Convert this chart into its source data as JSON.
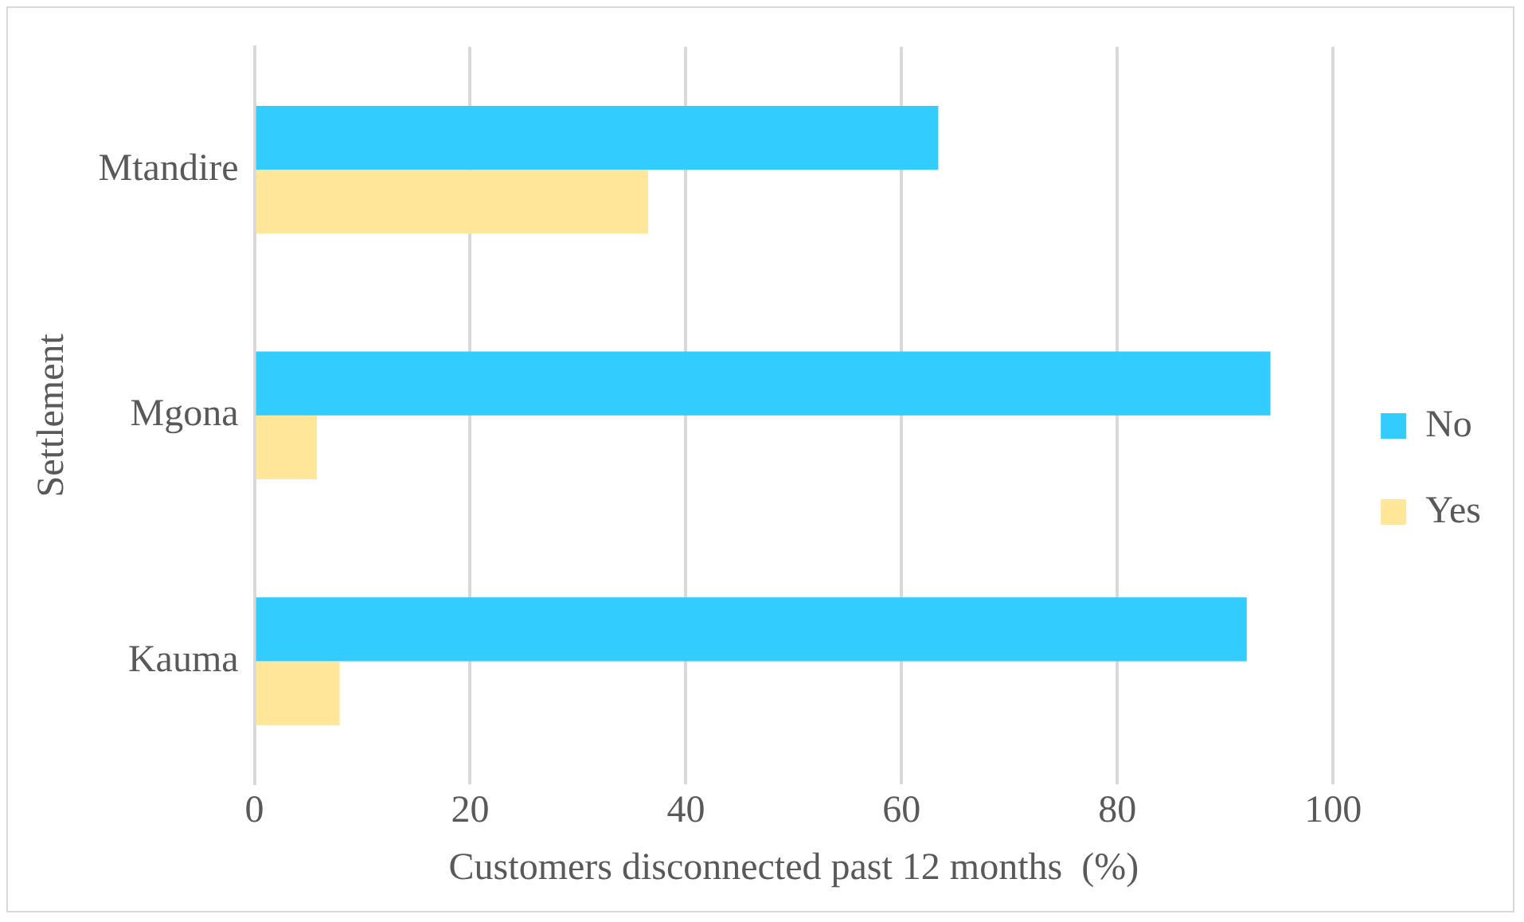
{
  "chart_data": {
    "type": "bar",
    "orientation": "horizontal",
    "xlabel": "Customers disconnected past 12 months  (%)",
    "ylabel": "Settlement",
    "categories": [
      "Mtandire",
      "Mgona",
      "Kauma"
    ],
    "series": [
      {
        "name": "No",
        "color": "#33ccff",
        "values": [
          63.4,
          94.2,
          92.0
        ]
      },
      {
        "name": "Yes",
        "color": "#ffe699",
        "values": [
          36.5,
          5.8,
          7.9
        ]
      }
    ],
    "xlim": [
      0,
      100
    ],
    "xticks": [
      0,
      20,
      40,
      60,
      80,
      100
    ],
    "grid": "x",
    "legend": "right"
  }
}
